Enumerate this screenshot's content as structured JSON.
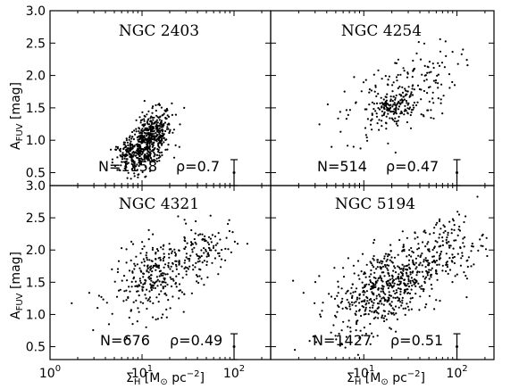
{
  "chart_data": {
    "type": "scatter",
    "x_scale": "log",
    "xlim": [
      1,
      250
    ],
    "ylim": [
      0.3,
      3.0
    ],
    "x_ticks": [
      1,
      10,
      100
    ],
    "x_tick_labels": [
      "10^0",
      "10^1",
      "10^2"
    ],
    "y_ticks": [
      0.5,
      1.0,
      1.5,
      2.0,
      2.5,
      3.0
    ],
    "y_tick_labels": [
      "0.5",
      "1.0",
      "1.5",
      "2.0",
      "2.5",
      "3.0"
    ],
    "xlabel": "Σ_H [M_⊙ pc^-2]",
    "ylabel": "A_FUV [mag]",
    "error_bar": {
      "x": 100,
      "y": 0.5,
      "yerr": 0.2
    },
    "panels": [
      {
        "name": "NGC 2403",
        "N": "N=1158",
        "rho": "ρ=0.7",
        "clusters": [
          {
            "x": 12,
            "y": 1.0,
            "sx": 0.12,
            "sy": 0.2,
            "n": 550,
            "slope": 0.9
          },
          {
            "x": 7,
            "y": 0.8,
            "sx": 0.08,
            "sy": 0.12,
            "n": 100,
            "slope": 0.6
          }
        ]
      },
      {
        "name": "NGC 4254",
        "N": "N=514",
        "rho": "ρ=0.47",
        "clusters": [
          {
            "x": 25,
            "y": 1.7,
            "sx": 0.3,
            "sy": 0.3,
            "n": 220,
            "slope": 0.6
          },
          {
            "x": 20,
            "y": 1.5,
            "sx": 0.1,
            "sy": 0.1,
            "n": 100,
            "slope": 0.3
          }
        ]
      },
      {
        "name": "NGC 4321",
        "N": "N=676",
        "rho": "ρ=0.49",
        "clusters": [
          {
            "x": 15,
            "y": 1.6,
            "sx": 0.25,
            "sy": 0.28,
            "n": 330,
            "slope": 0.5
          },
          {
            "x": 50,
            "y": 2.0,
            "sx": 0.15,
            "sy": 0.2,
            "n": 80,
            "slope": 0.4
          }
        ]
      },
      {
        "name": "NGC 5194",
        "N": "N=1427",
        "rho": "ρ=0.51",
        "clusters": [
          {
            "x": 18,
            "y": 1.45,
            "sx": 0.3,
            "sy": 0.3,
            "n": 600,
            "slope": 0.55
          },
          {
            "x": 80,
            "y": 2.05,
            "sx": 0.2,
            "sy": 0.25,
            "n": 120,
            "slope": 0.3
          }
        ]
      }
    ]
  }
}
